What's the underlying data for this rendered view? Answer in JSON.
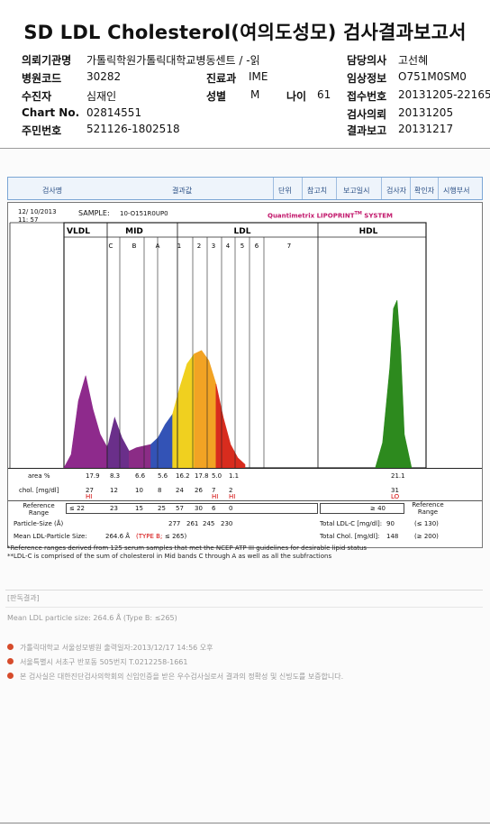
{
  "title": "SD LDL Cholesterol(여의도성모) 검사결과보고서",
  "header": {
    "left": [
      {
        "label": "의뢰기관명",
        "value": "가톨릭학원가톨릭대학교병동센트 / -읽"
      },
      {
        "label": "병원코드",
        "value": "30282"
      },
      {
        "label": "수진자",
        "value": "심재인"
      },
      {
        "label": "Chart No.",
        "value": "02814551"
      },
      {
        "label": "주민번호",
        "value": "521126-1802518"
      }
    ],
    "mid": {
      "dept_label": "진료과",
      "dept_value": "IME",
      "sex_label": "성별",
      "sex_value": "M",
      "age_label": "나이",
      "age_value": "61"
    },
    "right": [
      {
        "label": "담당의사",
        "value": "고선혜"
      },
      {
        "label": "임상정보",
        "value": "O751M0SM0"
      },
      {
        "label": "접수번호",
        "value": "20131205-22165"
      },
      {
        "label": "검사의뢰",
        "value": "20131205"
      },
      {
        "label": "결과보고",
        "value": "20131217"
      }
    ]
  },
  "table_header": {
    "cols": [
      "검사명",
      "결과값",
      "단위",
      "참고치",
      "보고일시",
      "검사자",
      "확인자",
      "시행부서"
    ]
  },
  "report": {
    "date": "12/ 10/2013",
    "time": "11: 57",
    "sample_label": "SAMPLE:",
    "sample_value": "10-O151R0UP0",
    "brand": "Quantimetrix LIPOPRINT",
    "brand_tm": "TM",
    "brand_suffix": " SYSTEM",
    "groups": {
      "vldl": "VLDL",
      "mid": "MID",
      "ldl": "LDL",
      "hdl": "HDL"
    },
    "bands": [
      "C",
      "B",
      "A",
      "1",
      "2",
      "3",
      "4",
      "5",
      "6",
      "7"
    ],
    "row_area_label": "area %",
    "area_values": [
      "17.9",
      "8.3",
      "6.6",
      "5.6",
      "16.2",
      "17.8",
      "5.0",
      "1.1",
      "21.1"
    ],
    "row_chol_label": "chol. [mg/dl]",
    "chol_values": [
      "27",
      "12",
      "10",
      "8",
      "24",
      "26",
      "7",
      "2",
      "31"
    ],
    "flags": [
      {
        "col": 0,
        "text": "HI"
      },
      {
        "col": 6,
        "text": "HI"
      },
      {
        "col": 7,
        "text": "HI"
      },
      {
        "col": 8,
        "text": "LO"
      }
    ],
    "ref_label": "Reference Range",
    "ref_values": [
      "≤ 22",
      "23",
      "15",
      "25",
      "57",
      "30",
      "6",
      "0"
    ],
    "ref_hdl": "≥ 40",
    "ref_right_label": "Reference Range",
    "particle_label": "Particle-Size (Å)",
    "particle_values": [
      "277",
      "261",
      "245",
      "230"
    ],
    "mean_label": "Mean LDL-Particle Size:",
    "mean_value": "264.6 Å",
    "mean_type": "(TYPE B;",
    "mean_limit": "≤ 265)",
    "total_ldl_label": "Total LDL-C [mg/dl]:",
    "total_ldl_value": "90",
    "total_ldl_ref": "(≤ 130)",
    "total_chol_label": "Total Chol. [mg/dl]:",
    "total_chol_value": "148",
    "total_chol_ref": "(≥ 200)"
  },
  "chart_data": {
    "type": "area",
    "title": "",
    "xlabel": "",
    "ylabel": "",
    "series": [
      {
        "name": "VLDL",
        "color": "#8e2a8c",
        "points": [
          [
            0,
            0
          ],
          [
            2,
            8
          ],
          [
            4,
            40
          ],
          [
            6,
            55
          ],
          [
            8,
            35
          ],
          [
            10,
            20
          ],
          [
            12,
            12
          ]
        ]
      },
      {
        "name": "MID C",
        "color": "#6a2f8a",
        "points": [
          [
            12,
            12
          ],
          [
            14,
            30
          ],
          [
            16,
            18
          ],
          [
            18,
            10
          ]
        ]
      },
      {
        "name": "MID B",
        "color": "#8b2c86",
        "points": [
          [
            18,
            10
          ],
          [
            20,
            12
          ],
          [
            22,
            13
          ],
          [
            24,
            14
          ]
        ]
      },
      {
        "name": "MID A",
        "color": "#3353b6",
        "points": [
          [
            24,
            14
          ],
          [
            26,
            18
          ],
          [
            28,
            26
          ],
          [
            30,
            32
          ]
        ]
      },
      {
        "name": "LDL 1",
        "color": "#f0d01f",
        "points": [
          [
            30,
            32
          ],
          [
            32,
            48
          ],
          [
            34,
            62
          ],
          [
            36,
            68
          ]
        ]
      },
      {
        "name": "LDL 2",
        "color": "#f2a324",
        "points": [
          [
            36,
            68
          ],
          [
            38,
            70
          ],
          [
            40,
            64
          ],
          [
            42,
            50
          ]
        ]
      },
      {
        "name": "LDL 3-7",
        "color": "#d82c1e",
        "points": [
          [
            42,
            50
          ],
          [
            44,
            30
          ],
          [
            46,
            14
          ],
          [
            48,
            6
          ],
          [
            50,
            2
          ]
        ]
      },
      {
        "name": "HDL",
        "color": "#2d8a1e",
        "points": [
          [
            86,
            0
          ],
          [
            88,
            15
          ],
          [
            90,
            60
          ],
          [
            91,
            95
          ],
          [
            92,
            100
          ],
          [
            93,
            70
          ],
          [
            94,
            20
          ],
          [
            96,
            0
          ]
        ]
      }
    ]
  },
  "footnotes": [
    "*Reference ranges derived from 125 serum samples that met the NCEP ATP III guidelines for desirable lipid status",
    "**LDL-C is comprised of the sum of cholesterol in Mid bands C through A as well as all the subfractions"
  ],
  "bottom": {
    "section_label": "[판독결과]",
    "mean_text": "Mean LDL particle size: 264.6 Å (Type B: ≤265)",
    "bullets": [
      "가톨릭대학교 서울성모병원      출력일자:2013/12/17 14:56 오후",
      "서울특별시 서초구 반포동 505번지 T.0212258-1661",
      "본 검사실은 대한진단검사의학회의 신임인증을 받은 우수검사실로서 결과의 정확성 및 신빙도를 보증합니다."
    ]
  },
  "colors": {
    "accent_red": "#d20000",
    "brand_magenta": "#c2176b",
    "table_blue": "#2a4f85",
    "bullet_orange": "#d64b2b"
  }
}
